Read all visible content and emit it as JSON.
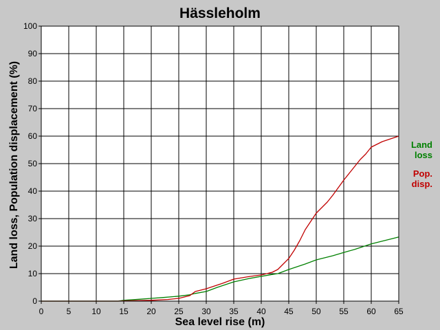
{
  "chart_data": {
    "type": "line",
    "title": "Hässleholm",
    "xlabel": "Sea level rise (m)",
    "ylabel": "Land loss, Population displacement (%)",
    "xlim": [
      0,
      65
    ],
    "ylim": [
      0,
      100
    ],
    "x_ticks": [
      "0",
      "5",
      "10",
      "15",
      "20",
      "25",
      "30",
      "35",
      "40",
      "45",
      "50",
      "55",
      "60",
      "65"
    ],
    "y_ticks": [
      "0",
      "10",
      "20",
      "30",
      "40",
      "50",
      "60",
      "70",
      "80",
      "90",
      "100"
    ],
    "grid": true,
    "legend_position": "right",
    "series": [
      {
        "name": "Land loss",
        "legend_lines": [
          "Land",
          "loss"
        ],
        "color": "#008000",
        "x": [
          0,
          14,
          15,
          18,
          20,
          22,
          25,
          27,
          28,
          30,
          32,
          35,
          38,
          40,
          42,
          43,
          45,
          48,
          50,
          53,
          55,
          57,
          60,
          62,
          65
        ],
        "y": [
          0,
          0,
          0.3,
          0.7,
          1.0,
          1.3,
          1.8,
          2.3,
          2.8,
          3.5,
          5.0,
          7.0,
          8.3,
          9.0,
          9.7,
          10.0,
          11.5,
          13.5,
          15.0,
          16.5,
          17.7,
          18.8,
          20.8,
          21.8,
          23.3
        ]
      },
      {
        "name": "Pop. disp.",
        "legend_lines": [
          "Pop.",
          "disp."
        ],
        "color": "#c00000",
        "x": [
          0,
          14,
          15,
          18,
          20,
          23,
          25,
          27,
          28,
          30,
          33,
          35,
          38,
          40,
          42,
          43,
          44,
          45,
          46,
          47,
          48,
          49,
          50,
          52,
          53,
          55,
          56,
          57,
          58,
          59,
          60,
          62,
          65
        ],
        "y": [
          0,
          0,
          0.1,
          0.2,
          0.3,
          0.6,
          1.0,
          2.0,
          3.5,
          4.5,
          6.5,
          8.0,
          9.0,
          9.5,
          10.5,
          11.5,
          13.5,
          15.5,
          18.5,
          22.0,
          26.0,
          29.0,
          32.0,
          36.0,
          38.5,
          44.0,
          46.5,
          49.0,
          51.5,
          53.5,
          56.0,
          58.0,
          60.0
        ]
      }
    ]
  }
}
